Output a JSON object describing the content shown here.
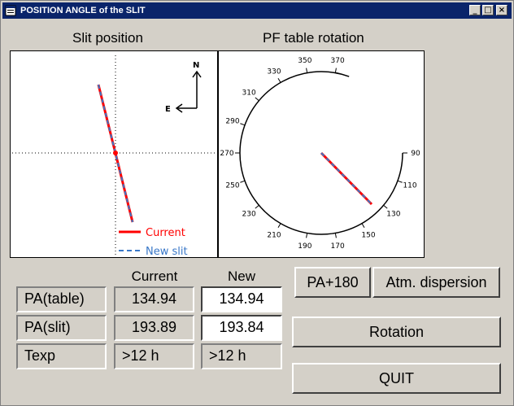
{
  "window": {
    "title": "POSITION ANGLE of the SLIT",
    "minimize": "_",
    "maximize": "□",
    "close": "×"
  },
  "slit_panel": {
    "title": "Slit position",
    "north": "N",
    "east": "E",
    "legend_current": "Current",
    "legend_new": "New slit",
    "colors": {
      "current": "#ff0000",
      "new": "#3a78c8"
    }
  },
  "pf_panel": {
    "title": "PF table rotation",
    "tick_labels": [
      "370",
      "350",
      "330",
      "310",
      "290",
      "270",
      "250",
      "230",
      "210",
      "190",
      "170",
      "150",
      "130",
      "110",
      "90"
    ]
  },
  "table": {
    "col_current": "Current",
    "col_new": "New",
    "rows": [
      {
        "label": "PA(table)",
        "current": "134.94",
        "new": "134.94"
      },
      {
        "label": "PA(slit)",
        "current": "193.89",
        "new": "193.84"
      },
      {
        "label": "Texp",
        "current": ">12 h",
        "new": ">12 h"
      }
    ]
  },
  "buttons": {
    "pa180": "PA+180",
    "atm": "Atm. dispersion",
    "rotation": "Rotation",
    "quit": "QUIT"
  }
}
